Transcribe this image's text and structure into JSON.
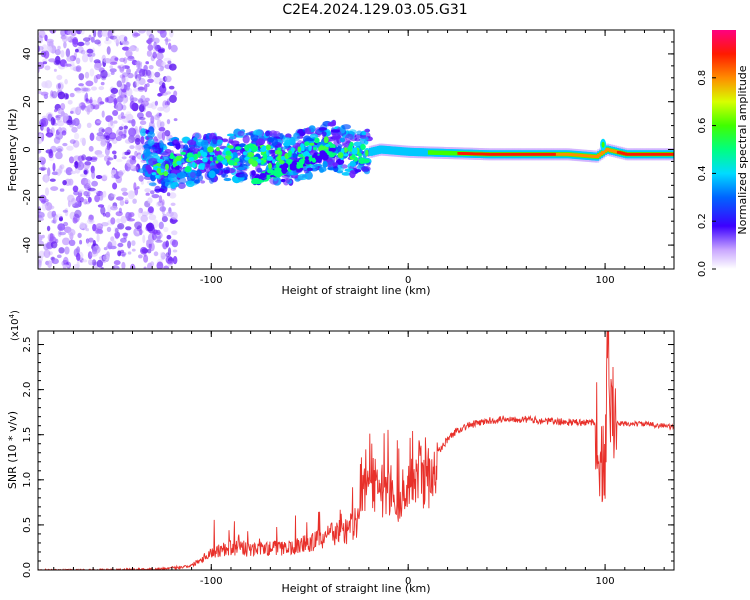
{
  "figure": {
    "title": "C2E4.2024.129.03.05.G31"
  },
  "chart_data": [
    {
      "type": "heatmap",
      "xlabel": "Height of straight line (km)",
      "ylabel": "Frequency (Hz)",
      "xlim": [
        -188,
        135
      ],
      "ylim": [
        -50,
        50
      ],
      "x_ticks": [
        -100,
        0,
        100
      ],
      "y_ticks": [
        -40,
        -20,
        0,
        20,
        40
      ],
      "colorbar": {
        "label": "Normalized spectral amplitude",
        "range": [
          0.0,
          1.0
        ],
        "ticks": [
          "0.0",
          "0.2",
          "0.4",
          "0.6",
          "0.8"
        ]
      },
      "ridge": {
        "description_points_x": [
          -130,
          -120,
          -100,
          -80,
          -60,
          -40,
          -25,
          -15,
          0,
          20,
          40,
          60,
          80,
          95,
          100,
          110,
          135
        ],
        "frequency_y": [
          -8,
          -6,
          -3,
          -2,
          -4,
          2,
          -2,
          0,
          -1,
          -1.5,
          -2,
          -2,
          -2,
          -3,
          0,
          -2,
          -2
        ]
      }
    },
    {
      "type": "line",
      "xlabel": "Height of straight line (km)",
      "ylabel": "SNR (10 * v/v)",
      "y_multiplier_label": "(x10",
      "y_multiplier_exp": "4",
      "y_multiplier_close": ")",
      "xlim": [
        -188,
        135
      ],
      "ylim": [
        0,
        2.65
      ],
      "x_ticks": [
        -100,
        0,
        100
      ],
      "y_ticks": [
        "0.0",
        "0.5",
        "1.0",
        "1.5",
        "2.0",
        "2.5"
      ],
      "series": [
        {
          "color": "#e8302a",
          "x": [
            -188,
            -160,
            -130,
            -120,
            -110,
            -100,
            -90,
            -80,
            -70,
            -60,
            -50,
            -40,
            -30,
            -25,
            -20,
            -18,
            -15,
            -10,
            -5,
            0,
            5,
            10,
            15,
            20,
            25,
            30,
            40,
            50,
            60,
            70,
            80,
            90,
            95,
            100,
            101,
            102,
            103,
            105,
            110,
            120,
            130,
            135
          ],
          "y": [
            0.0,
            0.0,
            0.01,
            0.02,
            0.05,
            0.2,
            0.25,
            0.22,
            0.24,
            0.25,
            0.3,
            0.38,
            0.45,
            0.55,
            1.2,
            1.0,
            0.85,
            0.9,
            0.8,
            0.9,
            1.1,
            1.0,
            1.3,
            1.45,
            1.55,
            1.6,
            1.65,
            1.68,
            1.67,
            1.65,
            1.64,
            1.63,
            1.65,
            0.9,
            2.2,
            2.6,
            1.8,
            1.62,
            1.62,
            1.62,
            1.6,
            1.58
          ]
        }
      ]
    }
  ]
}
